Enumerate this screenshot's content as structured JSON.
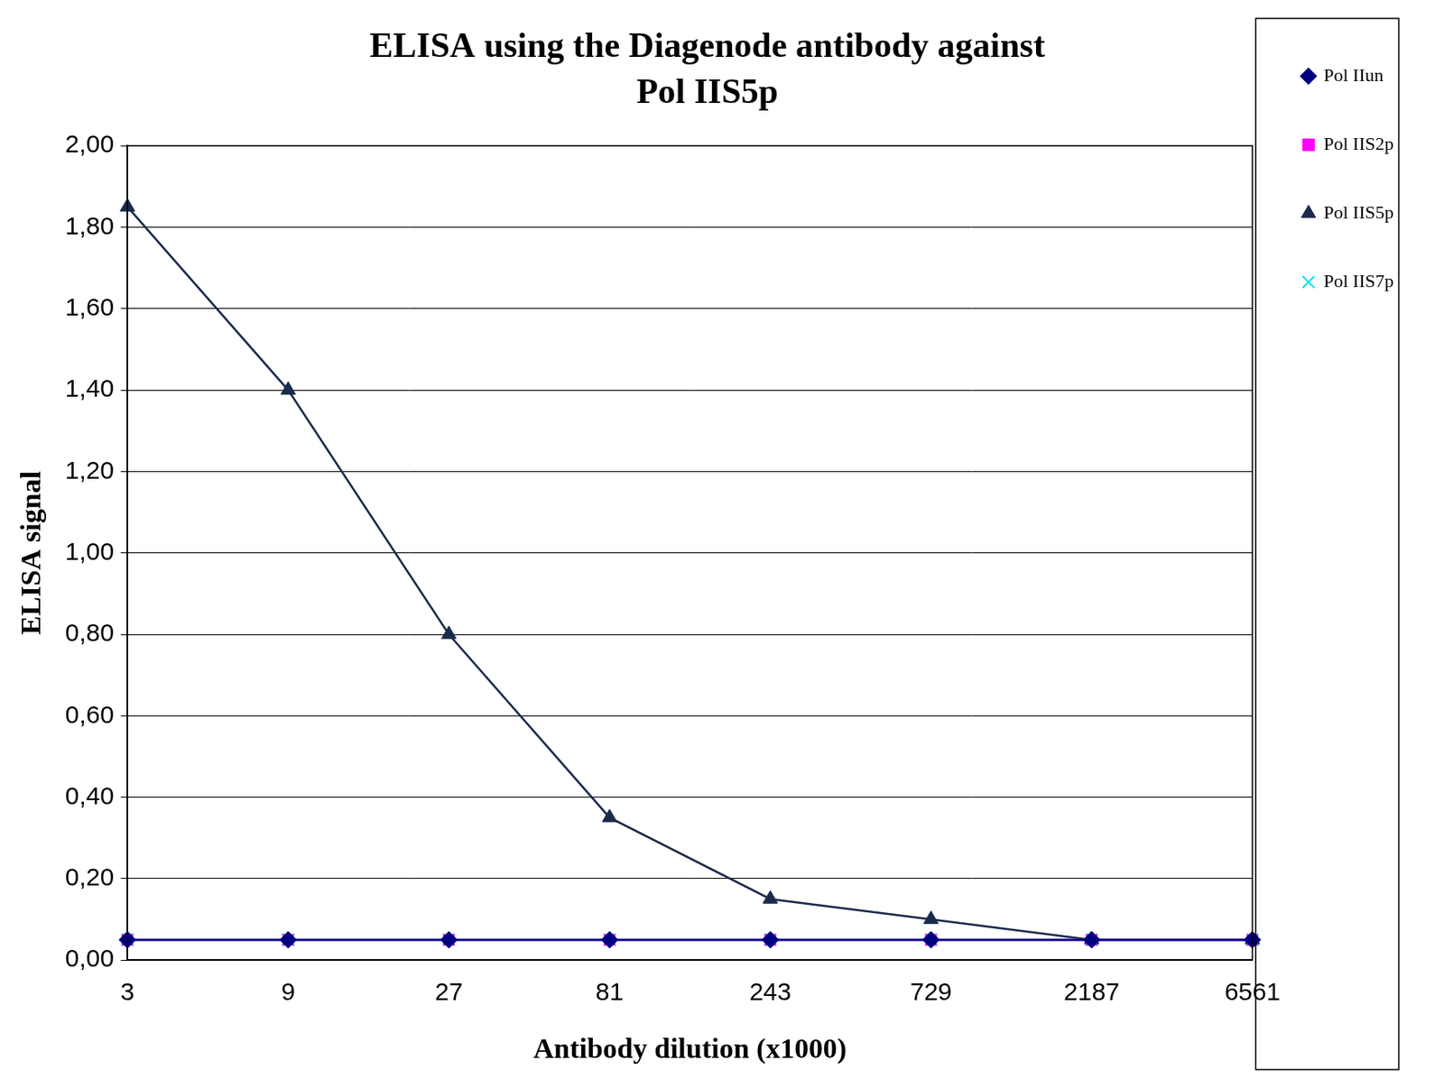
{
  "chart_data": {
    "type": "line",
    "title": [
      "ELISA using the Diagenode antibody against",
      "Pol IIS5p"
    ],
    "x_label": "Antibody dilution (x1000)",
    "y_label": "ELISA signal",
    "categories": [
      "3",
      "9",
      "27",
      "81",
      "243",
      "729",
      "2187",
      "6561"
    ],
    "series": [
      {
        "name": "Pol IIun",
        "color": "#000080",
        "marker": "diamond",
        "line_style": "solid",
        "values": [
          0.05,
          0.05,
          0.05,
          0.05,
          0.05,
          0.05,
          0.05,
          0.05
        ]
      },
      {
        "name": "Pol IIS2p",
        "color": "#ff00ff",
        "marker": "square",
        "line_style": "solid",
        "values": [
          0.05,
          0.05,
          0.05,
          0.05,
          0.05,
          0.05,
          0.05,
          0.05
        ]
      },
      {
        "name": "Pol IIS5p",
        "color": "#1a2b4c",
        "marker": "triangle",
        "line_style": "solid",
        "values": [
          1.85,
          1.4,
          0.8,
          0.35,
          0.15,
          0.1,
          0.05,
          0.05
        ]
      },
      {
        "name": "Pol IIS7p",
        "color": "#00e5ee",
        "marker": "x",
        "line_style": "solid",
        "values": [
          0.05,
          0.05,
          0.05,
          0.05,
          0.05,
          0.05,
          0.05,
          0.05
        ]
      }
    ],
    "ylim": [
      0,
      2
    ],
    "yticks": [
      {
        "value": 0,
        "label": "0,00"
      },
      {
        "value": 0.2,
        "label": "0,20"
      },
      {
        "value": 0.4,
        "label": "0,40"
      },
      {
        "value": 0.6,
        "label": "0,60"
      },
      {
        "value": 0.8,
        "label": "0,80"
      },
      {
        "value": 1.0,
        "label": "1,00"
      },
      {
        "value": 1.2,
        "label": "1,20"
      },
      {
        "value": 1.4,
        "label": "1,40"
      },
      {
        "value": 1.6,
        "label": "1,60"
      },
      {
        "value": 1.8,
        "label": "1,80"
      },
      {
        "value": 2.0,
        "label": "2,00"
      }
    ],
    "grid": true,
    "legend": "right"
  }
}
